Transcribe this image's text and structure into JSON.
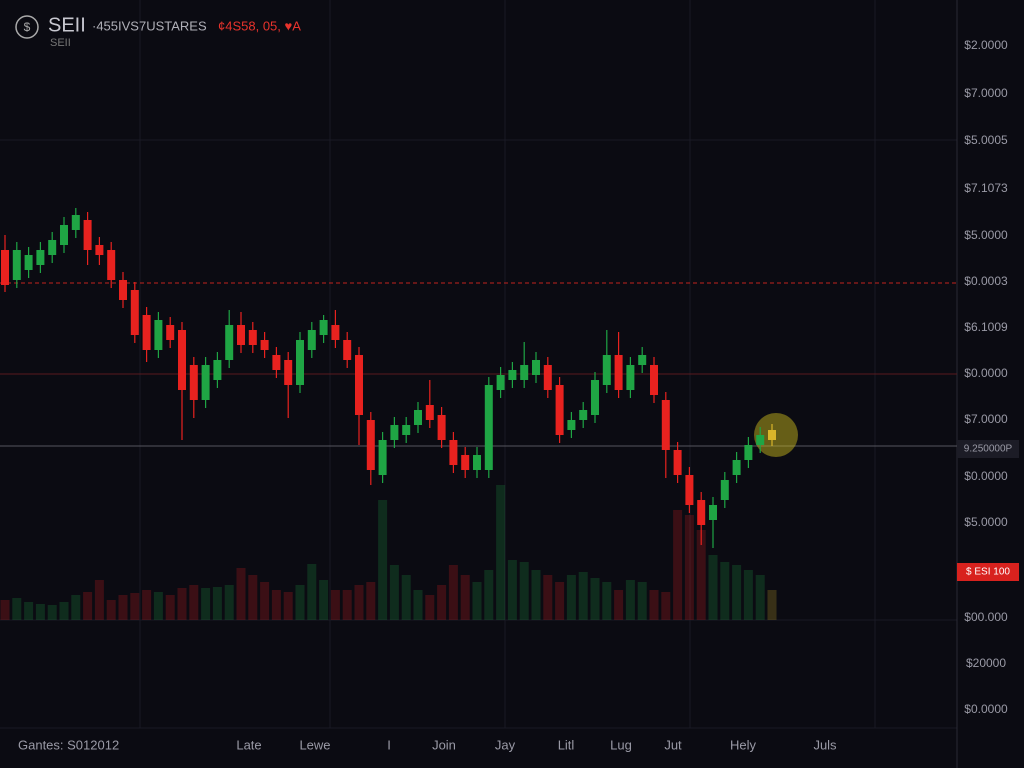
{
  "chart_data": {
    "type": "candlestick",
    "symbol": "SEII",
    "subtitle": "SEII",
    "ticker_text": "·455IVS7USTARES",
    "change_text": "¢4S58, 05, ♥A",
    "price_labels": [
      "$2.0000",
      "$7.0000",
      "$5.0005",
      "$7.1073",
      "$5.0000",
      "$0.0003",
      "$6.1009",
      "$0.0000",
      "$7.0000",
      "9.250000P",
      "$0.0000",
      "$5.0000",
      "$ ESI 100",
      "$00.000",
      "$20000",
      "$0.0000"
    ],
    "x_labels": [
      "Gantes: S012012",
      "Late",
      "Lewe",
      "I",
      "Join",
      "Jay",
      "Litl",
      "Lug",
      "Jut",
      "Hely",
      "Juls"
    ],
    "ylim": [
      0,
      768
    ],
    "levels": [
      485,
      394,
      322
    ],
    "up_color": "#1fa544",
    "down_color": "#e8221f",
    "last_color": "#d9b52a",
    "open": [
      518,
      488,
      498,
      503,
      513,
      523,
      538,
      548,
      523,
      518,
      488,
      478,
      453,
      418,
      443,
      438,
      403,
      368,
      388,
      408,
      443,
      438,
      428,
      413,
      408,
      383,
      418,
      433,
      443,
      428,
      413,
      348,
      293,
      328,
      333,
      343,
      363,
      353,
      328,
      313,
      298,
      298,
      378,
      388,
      388,
      393,
      403,
      383,
      338,
      348,
      353,
      383,
      413,
      378,
      403,
      403,
      368,
      318,
      293,
      268,
      248,
      268,
      293,
      308,
      323,
      328
    ],
    "high": [
      533,
      526,
      521,
      526,
      536,
      551,
      560,
      556,
      531,
      526,
      496,
      486,
      461,
      456,
      451,
      446,
      411,
      411,
      416,
      458,
      456,
      446,
      436,
      421,
      416,
      436,
      446,
      453,
      458,
      436,
      421,
      356,
      336,
      351,
      351,
      366,
      388,
      361,
      336,
      321,
      321,
      391,
      401,
      406,
      426,
      416,
      411,
      391,
      356,
      366,
      396,
      438,
      436,
      411,
      421,
      411,
      376,
      326,
      301,
      276,
      271,
      296,
      316,
      331,
      341,
      344
    ],
    "low": [
      476,
      480,
      490,
      495,
      505,
      515,
      530,
      503,
      503,
      480,
      460,
      425,
      406,
      410,
      420,
      328,
      350,
      360,
      380,
      400,
      415,
      415,
      410,
      390,
      350,
      375,
      410,
      425,
      420,
      400,
      323,
      283,
      285,
      320,
      325,
      335,
      340,
      320,
      295,
      290,
      290,
      290,
      370,
      380,
      380,
      385,
      370,
      325,
      330,
      340,
      345,
      375,
      370,
      370,
      395,
      365,
      290,
      285,
      255,
      223,
      220,
      260,
      285,
      300,
      315,
      322
    ],
    "close": [
      483,
      518,
      513,
      518,
      528,
      543,
      553,
      518,
      513,
      488,
      468,
      433,
      418,
      448,
      428,
      378,
      368,
      403,
      408,
      443,
      423,
      423,
      418,
      398,
      383,
      428,
      438,
      448,
      428,
      408,
      353,
      298,
      328,
      343,
      343,
      358,
      348,
      328,
      303,
      298,
      313,
      383,
      393,
      398,
      403,
      408,
      378,
      333,
      348,
      358,
      388,
      413,
      378,
      403,
      413,
      373,
      318,
      293,
      263,
      243,
      263,
      288,
      308,
      323,
      333,
      338
    ],
    "volume": [
      20,
      22,
      18,
      16,
      15,
      18,
      25,
      28,
      40,
      20,
      25,
      27,
      30,
      28,
      25,
      32,
      35,
      32,
      33,
      35,
      52,
      45,
      38,
      30,
      28,
      35,
      56,
      40,
      30,
      30,
      35,
      38,
      120,
      55,
      45,
      30,
      25,
      35,
      55,
      45,
      38,
      50,
      135,
      60,
      58,
      50,
      45,
      38,
      45,
      48,
      42,
      38,
      30,
      40,
      38,
      30,
      28,
      110,
      105,
      90,
      65,
      58,
      55,
      50,
      45,
      30
    ],
    "volume_lim": [
      0,
      150
    ]
  }
}
